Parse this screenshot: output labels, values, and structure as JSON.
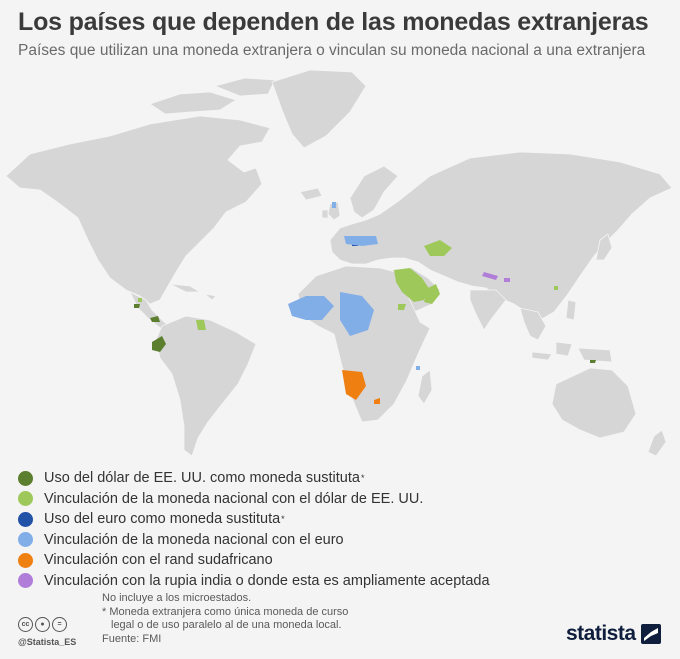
{
  "title": "Los países que dependen de las monedas extranjeras",
  "subtitle": "Países que utilizan una moneda extranjera o vinculan su moneda nacional a una extranjera",
  "colors": {
    "background": "#f4f4f4",
    "land": "#d6d6d6",
    "usd_substitute": "#5b7f2e",
    "usd_peg": "#9ec95a",
    "euro_substitute": "#2251a8",
    "euro_peg": "#82aee8",
    "rand_peg": "#f07f12",
    "rupee_peg": "#b07ed9"
  },
  "legend": [
    {
      "label": "Uso del dólar de EE. UU. como moneda sustituta",
      "mark": "*",
      "color": "#5b7f2e"
    },
    {
      "label": "Vinculación de la moneda nacional con el dólar de EE. UU.",
      "mark": "",
      "color": "#9ec95a"
    },
    {
      "label": "Uso del euro como moneda sustituta",
      "mark": "*",
      "color": "#2251a8"
    },
    {
      "label": "Vinculación de la moneda nacional con el euro",
      "mark": "",
      "color": "#82aee8"
    },
    {
      "label": "Vinculación con el rand sudafricano",
      "mark": "",
      "color": "#f07f12"
    },
    {
      "label": "Vinculación con la rupia india o donde esta es ampliamente aceptada",
      "mark": "",
      "color": "#b07ed9"
    }
  ],
  "notes": {
    "line1": "No incluye a los microestados.",
    "line2": "* Moneda extranjera como única moneda de curso",
    "line3": "legal o de uso paralelo al de una moneda local.",
    "source": "Fuente: FMI"
  },
  "footer": {
    "handle": "@Statista_ES",
    "brand": "statista",
    "icons": [
      "cc-icon",
      "attribution-icon",
      "no-derivatives-icon"
    ]
  }
}
